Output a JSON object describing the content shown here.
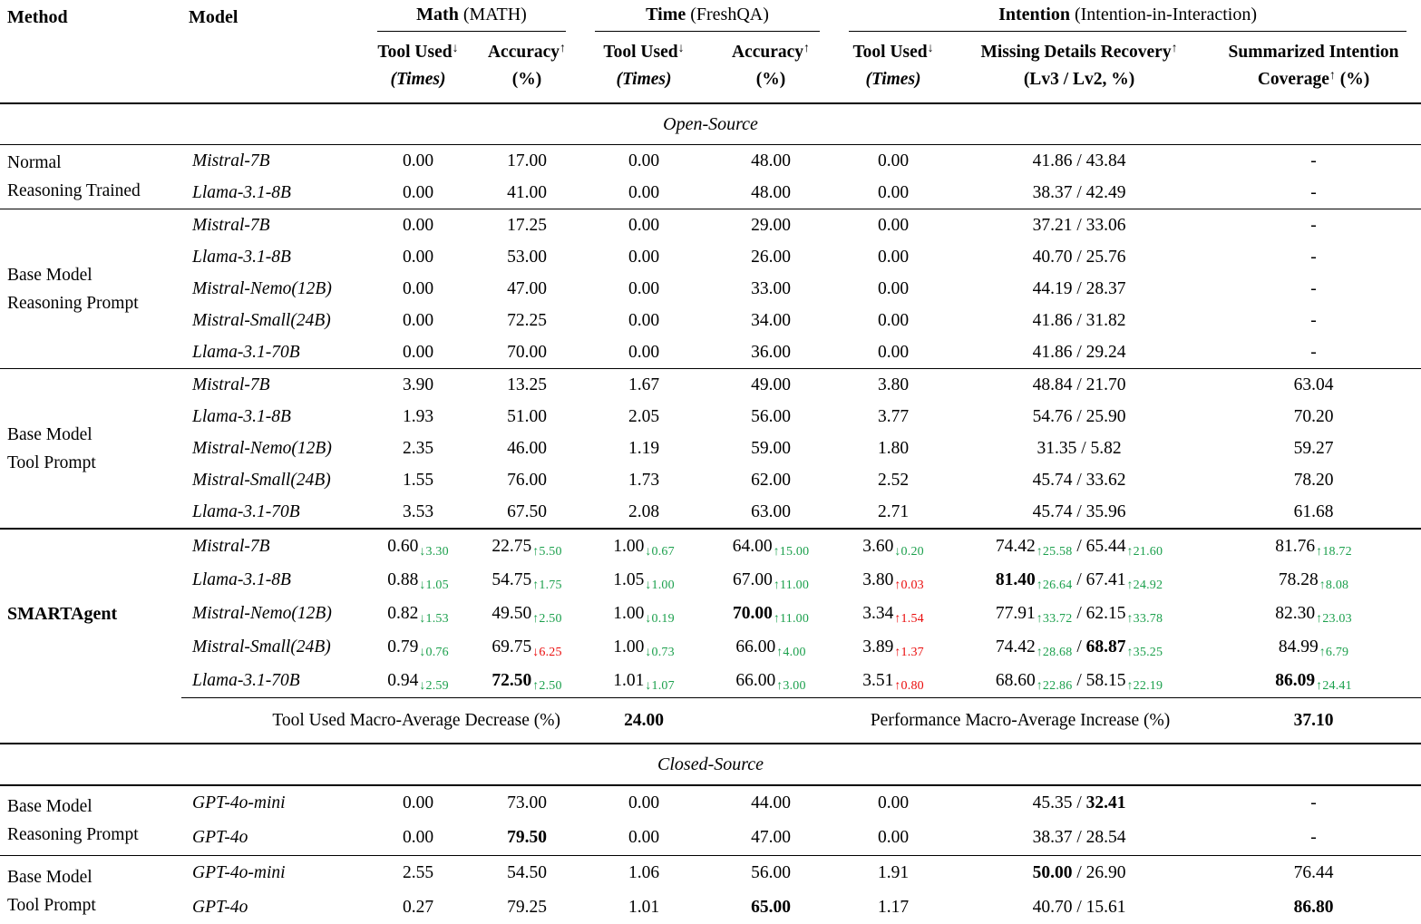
{
  "colors": {
    "green": "#1ca04d",
    "red": "#ea0b0b"
  },
  "table": {
    "header": {
      "method": "Method",
      "model": "Model",
      "groups": [
        {
          "name": "Math",
          "suffix": " (MATH)",
          "span": 2
        },
        {
          "name": "Time",
          "suffix": " (FreshQA)",
          "span": 2
        },
        {
          "name": "Intention",
          "suffix": " (Intention-in-Interaction)",
          "span": 3
        }
      ],
      "columns": [
        {
          "title": "Tool Used",
          "arrow": "↓",
          "unit": "(Times)",
          "unit_italic": true
        },
        {
          "title": "Accuracy",
          "arrow": "↑",
          "unit": "(%)"
        },
        {
          "title": "Tool Used",
          "arrow": "↓",
          "unit": "(Times)",
          "unit_italic": true
        },
        {
          "title": "Accuracy",
          "arrow": "↑",
          "unit": "(%)"
        },
        {
          "title": "Tool Used",
          "arrow": "↓",
          "unit": "(Times)",
          "unit_italic": true
        },
        {
          "title": "Missing Details Recovery",
          "arrow": "↑",
          "unit": "(Lv3 / Lv2, %)"
        },
        {
          "title": "Summarized Intention",
          "line2": "Coverage",
          "arrow2": "↑",
          "unit2": " (%)"
        }
      ]
    },
    "sections": [
      {
        "type": "banner",
        "id": "open-source",
        "label": "Open-Source",
        "style": "open"
      },
      {
        "type": "group",
        "method": [
          "Normal",
          "Reasoning Trained"
        ],
        "rule": "none",
        "rows": [
          {
            "model": "Mistral-7B",
            "values": [
              "0.00",
              "17.00",
              "0.00",
              "48.00",
              "0.00",
              "41.86 / 43.84",
              "-"
            ]
          },
          {
            "model": "Llama-3.1-8B",
            "values": [
              "0.00",
              "41.00",
              "0.00",
              "48.00",
              "0.00",
              "38.37 / 42.49",
              "-"
            ]
          }
        ]
      },
      {
        "type": "group",
        "method": [
          "Base Model",
          "Reasoning Prompt"
        ],
        "rule": "thin",
        "rows": [
          {
            "model": "Mistral-7B",
            "values": [
              "0.00",
              "17.25",
              "0.00",
              "29.00",
              "0.00",
              "37.21 / 33.06",
              "-"
            ]
          },
          {
            "model": "Llama-3.1-8B",
            "values": [
              "0.00",
              "53.00",
              "0.00",
              "26.00",
              "0.00",
              "40.70 / 25.76",
              "-"
            ]
          },
          {
            "model": "Mistral-Nemo(12B)",
            "values": [
              "0.00",
              "47.00",
              "0.00",
              "33.00",
              "0.00",
              "44.19 / 28.37",
              "-"
            ]
          },
          {
            "model": "Mistral-Small(24B)",
            "values": [
              "0.00",
              "72.25",
              "0.00",
              "34.00",
              "0.00",
              "41.86 / 31.82",
              "-"
            ]
          },
          {
            "model": "Llama-3.1-70B",
            "values": [
              "0.00",
              "70.00",
              "0.00",
              "36.00",
              "0.00",
              "41.86 / 29.24",
              "-"
            ]
          }
        ]
      },
      {
        "type": "group",
        "method": [
          "Base Model",
          "Tool Prompt"
        ],
        "rule": "thin",
        "rows": [
          {
            "model": "Mistral-7B",
            "values": [
              "3.90",
              "13.25",
              "1.67",
              "49.00",
              "3.80",
              "48.84 / 21.70",
              "63.04"
            ]
          },
          {
            "model": "Llama-3.1-8B",
            "values": [
              "1.93",
              "51.00",
              "2.05",
              "56.00",
              "3.77",
              "54.76 / 25.90",
              "70.20"
            ]
          },
          {
            "model": "Mistral-Nemo(12B)",
            "values": [
              "2.35",
              "46.00",
              "1.19",
              "59.00",
              "1.80",
              "31.35 / 5.82",
              "59.27"
            ]
          },
          {
            "model": "Mistral-Small(24B)",
            "values": [
              "1.55",
              "76.00",
              "1.73",
              "62.00",
              "2.52",
              "45.74 / 33.62",
              "78.20"
            ]
          },
          {
            "model": "Llama-3.1-70B",
            "values": [
              "3.53",
              "67.50",
              "2.08",
              "63.00",
              "2.71",
              "45.74 / 35.96",
              "61.68"
            ]
          }
        ]
      },
      {
        "type": "group",
        "method": [
          "SMARTAgent"
        ],
        "method_bold": true,
        "rule": "thick",
        "row_class": "h-sm",
        "rows": [
          {
            "model": "Mistral-7B",
            "values": [
              [
                {
                  "t": "0.60"
                },
                {
                  "s": "↓3.30",
                  "c": "g"
                }
              ],
              [
                {
                  "t": "22.75"
                },
                {
                  "s": "↑5.50",
                  "c": "g"
                }
              ],
              [
                {
                  "t": "1.00"
                },
                {
                  "s": "↓0.67",
                  "c": "g"
                }
              ],
              [
                {
                  "t": "64.00"
                },
                {
                  "s": "↑15.00",
                  "c": "g"
                }
              ],
              [
                {
                  "t": "3.60"
                },
                {
                  "s": "↓0.20",
                  "c": "g"
                }
              ],
              [
                {
                  "t": "74.42"
                },
                {
                  "s": "↑25.58",
                  "c": "g"
                },
                {
                  "t": " / "
                },
                {
                  "t": "65.44"
                },
                {
                  "s": "↑21.60",
                  "c": "g"
                }
              ],
              [
                {
                  "t": "81.76"
                },
                {
                  "s": "↑18.72",
                  "c": "g"
                }
              ]
            ]
          },
          {
            "model": "Llama-3.1-8B",
            "values": [
              [
                {
                  "t": "0.88"
                },
                {
                  "s": "↓1.05",
                  "c": "g"
                }
              ],
              [
                {
                  "t": "54.75"
                },
                {
                  "s": "↑1.75",
                  "c": "g"
                }
              ],
              [
                {
                  "t": "1.05"
                },
                {
                  "s": "↓1.00",
                  "c": "g"
                }
              ],
              [
                {
                  "t": "67.00"
                },
                {
                  "s": "↑11.00",
                  "c": "g"
                }
              ],
              [
                {
                  "t": "3.80"
                },
                {
                  "s": "↑0.03",
                  "c": "r"
                }
              ],
              [
                {
                  "t": "81.40",
                  "b": true
                },
                {
                  "s": "↑26.64",
                  "c": "g"
                },
                {
                  "t": " / "
                },
                {
                  "t": "67.41"
                },
                {
                  "s": "↑24.92",
                  "c": "g"
                }
              ],
              [
                {
                  "t": "78.28"
                },
                {
                  "s": "↑8.08",
                  "c": "g"
                }
              ]
            ]
          },
          {
            "model": "Mistral-Nemo(12B)",
            "values": [
              [
                {
                  "t": "0.82"
                },
                {
                  "s": "↓1.53",
                  "c": "g"
                }
              ],
              [
                {
                  "t": "49.50"
                },
                {
                  "s": "↑2.50",
                  "c": "g"
                }
              ],
              [
                {
                  "t": "1.00"
                },
                {
                  "s": "↓0.19",
                  "c": "g"
                }
              ],
              [
                {
                  "t": "70.00",
                  "b": true
                },
                {
                  "s": "↑11.00",
                  "c": "g"
                }
              ],
              [
                {
                  "t": "3.34"
                },
                {
                  "s": "↑1.54",
                  "c": "r"
                }
              ],
              [
                {
                  "t": "77.91"
                },
                {
                  "s": "↑33.72",
                  "c": "g"
                },
                {
                  "t": " / "
                },
                {
                  "t": "62.15"
                },
                {
                  "s": "↑33.78",
                  "c": "g"
                }
              ],
              [
                {
                  "t": "82.30"
                },
                {
                  "s": "↑23.03",
                  "c": "g"
                }
              ]
            ]
          },
          {
            "model": "Mistral-Small(24B)",
            "values": [
              [
                {
                  "t": "0.79"
                },
                {
                  "s": "↓0.76",
                  "c": "g"
                }
              ],
              [
                {
                  "t": "69.75"
                },
                {
                  "s": "↓6.25",
                  "c": "r"
                }
              ],
              [
                {
                  "t": "1.00"
                },
                {
                  "s": "↓0.73",
                  "c": "g"
                }
              ],
              [
                {
                  "t": "66.00"
                },
                {
                  "s": "↑4.00",
                  "c": "g"
                }
              ],
              [
                {
                  "t": "3.89"
                },
                {
                  "s": "↑1.37",
                  "c": "r"
                }
              ],
              [
                {
                  "t": "74.42"
                },
                {
                  "s": "↑28.68",
                  "c": "g"
                },
                {
                  "t": " / "
                },
                {
                  "t": "68.87",
                  "b": true
                },
                {
                  "s": "↑35.25",
                  "c": "g"
                }
              ],
              [
                {
                  "t": "84.99"
                },
                {
                  "s": "↑6.79",
                  "c": "g"
                }
              ]
            ]
          },
          {
            "model": "Llama-3.1-70B",
            "values": [
              [
                {
                  "t": "0.94"
                },
                {
                  "s": "↓2.59",
                  "c": "g"
                }
              ],
              [
                {
                  "t": "72.50",
                  "b": true
                },
                {
                  "s": "↑2.50",
                  "c": "g"
                }
              ],
              [
                {
                  "t": "1.01"
                },
                {
                  "s": "↓1.07",
                  "c": "g"
                }
              ],
              [
                {
                  "t": "66.00"
                },
                {
                  "s": "↑3.00",
                  "c": "g"
                }
              ],
              [
                {
                  "t": "3.51"
                },
                {
                  "s": "↑0.80",
                  "c": "r"
                }
              ],
              [
                {
                  "t": "68.60"
                },
                {
                  "s": "↑22.86",
                  "c": "g"
                },
                {
                  "t": " / "
                },
                {
                  "t": "58.15"
                },
                {
                  "s": "↑22.19",
                  "c": "g"
                }
              ],
              [
                {
                  "t": "86.09",
                  "b": true
                },
                {
                  "s": "↑24.41",
                  "c": "g"
                }
              ]
            ]
          }
        ]
      },
      {
        "type": "macro",
        "left_label": "Tool Used Macro-Average Decrease (%)",
        "left_value": "24.00",
        "right_label": "Performance Macro-Average Increase (%)",
        "right_value": "37.10"
      },
      {
        "type": "banner",
        "id": "closed-source",
        "label": "Closed-Source",
        "style": "closed"
      },
      {
        "type": "group",
        "method": [
          "Base Model",
          "Reasoning Prompt"
        ],
        "rule": "none",
        "row_class": "h-cls",
        "rows": [
          {
            "model": "GPT-4o-mini",
            "values": [
              "0.00",
              "73.00",
              "0.00",
              "44.00",
              "0.00",
              [
                {
                  "t": "45.35"
                },
                {
                  "t": " / "
                },
                {
                  "t": "32.41",
                  "b": true
                }
              ],
              "-"
            ]
          },
          {
            "model": "GPT-4o",
            "values": [
              "0.00",
              [
                {
                  "t": "79.50",
                  "b": true
                }
              ],
              "0.00",
              "47.00",
              "0.00",
              "38.37 / 28.54",
              "-"
            ]
          }
        ]
      },
      {
        "type": "group",
        "method": [
          "Base Model",
          "Tool Prompt"
        ],
        "rule": "thin",
        "row_class": "h-cls",
        "last": true,
        "rows": [
          {
            "model": "GPT-4o-mini",
            "values": [
              "2.55",
              "54.50",
              "1.06",
              "56.00",
              "1.91",
              [
                {
                  "t": "50.00",
                  "b": true
                },
                {
                  "t": " / "
                },
                {
                  "t": "26.90"
                }
              ],
              "76.44"
            ]
          },
          {
            "model": "GPT-4o",
            "values": [
              "0.27",
              "79.25",
              "1.01",
              [
                {
                  "t": "65.00",
                  "b": true
                }
              ],
              "1.17",
              "40.70 / 15.61",
              [
                {
                  "t": "86.80",
                  "b": true
                }
              ]
            ]
          }
        ]
      }
    ]
  }
}
